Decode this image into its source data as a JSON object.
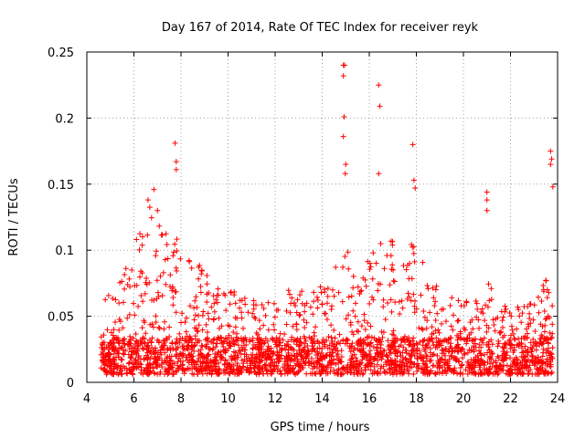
{
  "chart_data": {
    "type": "scatter",
    "title": "Day 167 of 2014, Rate Of TEC Index for receiver reyk",
    "xlabel": "GPS time / hours",
    "ylabel": "ROTI / TECUs",
    "xlim": [
      4,
      24
    ],
    "ylim": [
      0,
      0.25
    ],
    "xticks": [
      4,
      6,
      8,
      10,
      12,
      14,
      16,
      18,
      20,
      22,
      24
    ],
    "yticks": [
      0,
      0.05,
      0.1,
      0.15,
      0.2,
      0.25
    ],
    "xtick_labels": [
      "4",
      "6",
      "8",
      "10",
      "12",
      "14",
      "16",
      "18",
      "20",
      "22",
      "24"
    ],
    "ytick_labels": [
      "0",
      "0.05",
      "0.1",
      "0.15",
      "0.2",
      "0.25"
    ],
    "grid": true,
    "marker": "+",
    "color": "#ff0000",
    "series": [
      {
        "name": "ROTI",
        "x_range": [
          4.6,
          23.8
        ],
        "background_level": 0.02,
        "envelope": [
          [
            4.6,
            0.06
          ],
          [
            5.0,
            0.07
          ],
          [
            5.5,
            0.08
          ],
          [
            6.0,
            0.11
          ],
          [
            6.5,
            0.13
          ],
          [
            6.9,
            0.14
          ],
          [
            7.3,
            0.12
          ],
          [
            7.8,
            0.11
          ],
          [
            8.3,
            0.1
          ],
          [
            8.8,
            0.09
          ],
          [
            9.3,
            0.08
          ],
          [
            9.8,
            0.07
          ],
          [
            10.5,
            0.07
          ],
          [
            11.0,
            0.07
          ],
          [
            11.5,
            0.06
          ],
          [
            12.0,
            0.07
          ],
          [
            12.5,
            0.07
          ],
          [
            13.0,
            0.07
          ],
          [
            13.5,
            0.07
          ],
          [
            14.0,
            0.08
          ],
          [
            14.5,
            0.08
          ],
          [
            14.9,
            0.12
          ],
          [
            15.3,
            0.08
          ],
          [
            15.8,
            0.09
          ],
          [
            16.2,
            0.1
          ],
          [
            16.8,
            0.12
          ],
          [
            17.3,
            0.09
          ],
          [
            17.9,
            0.11
          ],
          [
            18.5,
            0.08
          ],
          [
            19.0,
            0.07
          ],
          [
            19.5,
            0.07
          ],
          [
            20.0,
            0.06
          ],
          [
            20.5,
            0.07
          ],
          [
            21.0,
            0.08
          ],
          [
            21.5,
            0.06
          ],
          [
            22.0,
            0.06
          ],
          [
            22.5,
            0.06
          ],
          [
            23.0,
            0.06
          ],
          [
            23.5,
            0.08
          ],
          [
            23.8,
            0.07
          ]
        ],
        "notable_points": [
          [
            14.9,
            0.24
          ],
          [
            14.95,
            0.24
          ],
          [
            14.9,
            0.232
          ],
          [
            14.93,
            0.201
          ],
          [
            14.9,
            0.186
          ],
          [
            15.0,
            0.165
          ],
          [
            14.98,
            0.158
          ],
          [
            16.4,
            0.225
          ],
          [
            16.45,
            0.209
          ],
          [
            16.4,
            0.158
          ],
          [
            7.75,
            0.181
          ],
          [
            7.8,
            0.167
          ],
          [
            7.8,
            0.161
          ],
          [
            17.85,
            0.18
          ],
          [
            17.9,
            0.153
          ],
          [
            17.95,
            0.147
          ],
          [
            23.7,
            0.175
          ],
          [
            23.75,
            0.169
          ],
          [
            23.7,
            0.165
          ],
          [
            23.8,
            0.148
          ],
          [
            21.0,
            0.144
          ],
          [
            21.0,
            0.138
          ],
          [
            21.0,
            0.13
          ],
          [
            6.85,
            0.146
          ],
          [
            6.6,
            0.138
          ],
          [
            7.0,
            0.13
          ]
        ]
      }
    ]
  }
}
